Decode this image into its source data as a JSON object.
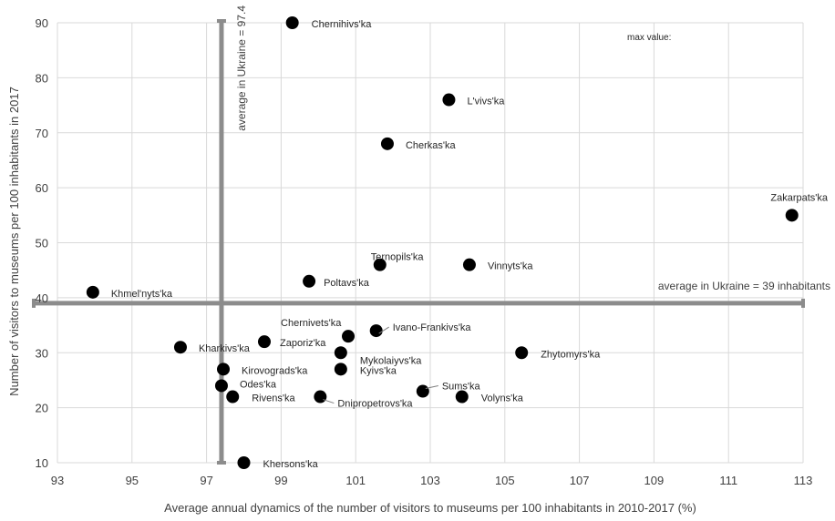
{
  "chart_data": {
    "type": "scatter",
    "title": "",
    "xlabel": "Average annual dynamics of the number of visitors to museums per 100 inhabitants in 2010-2017 (%)",
    "ylabel": "Number of visitors to museums per 100 inhabitants in 2017",
    "xlim": [
      93,
      113
    ],
    "ylim": [
      10,
      90
    ],
    "xticks": [
      93,
      95,
      97,
      99,
      101,
      103,
      105,
      107,
      109,
      111,
      113
    ],
    "yticks": [
      10,
      20,
      30,
      40,
      50,
      60,
      70,
      80,
      90
    ],
    "grid": true,
    "points": [
      {
        "label": "Chernihivs'ka",
        "x": 99.3,
        "y": 90
      },
      {
        "label": "L'vivs'ka",
        "x": 103.5,
        "y": 76
      },
      {
        "label": "Cherkas'ka",
        "x": 101.85,
        "y": 68
      },
      {
        "label": "Zakarpats'ka",
        "x": 112.7,
        "y": 55
      },
      {
        "label": "Ternopils'ka",
        "x": 101.65,
        "y": 46
      },
      {
        "label": "Vinnyts'ka",
        "x": 104.05,
        "y": 46
      },
      {
        "label": "Poltavs'ka",
        "x": 99.75,
        "y": 43
      },
      {
        "label": "Khmel'nyts'ka",
        "x": 93.95,
        "y": 41
      },
      {
        "label": "Ivano-Frankivs'ka",
        "x": 101.55,
        "y": 34
      },
      {
        "label": "Chernivets'ka",
        "x": 100.8,
        "y": 33
      },
      {
        "label": "Zaporiz'ka",
        "x": 98.55,
        "y": 32
      },
      {
        "label": "Kharkivs'ka",
        "x": 96.3,
        "y": 31
      },
      {
        "label": "Mykolaiyvs'ka",
        "x": 100.6,
        "y": 30
      },
      {
        "label": "Zhytomyrs'ka",
        "x": 105.45,
        "y": 30
      },
      {
        "label": "Kirovograds'ka",
        "x": 97.45,
        "y": 27
      },
      {
        "label": "Kyivs'ka",
        "x": 100.6,
        "y": 27
      },
      {
        "label": "Odes'ka",
        "x": 97.4,
        "y": 24
      },
      {
        "label": "Sums'ka",
        "x": 102.8,
        "y": 23
      },
      {
        "label": "Rivens'ka",
        "x": 97.7,
        "y": 22
      },
      {
        "label": "Dnipropetrovs'ka",
        "x": 100.05,
        "y": 22
      },
      {
        "label": "Volyns'ka",
        "x": 103.85,
        "y": 22
      },
      {
        "label": "Khersons'ka",
        "x": 98.0,
        "y": 10
      }
    ],
    "reference_lines": [
      {
        "orientation": "vertical",
        "value": 97.4,
        "label": "average in Ukraine = 97.4"
      },
      {
        "orientation": "horizontal",
        "value": 39,
        "label": "average in Ukraine = 39 inhabitants"
      }
    ],
    "annotation": "max value:",
    "colors": {
      "points": "#000000",
      "reference": "#8c8c8c",
      "grid": "#d9d9d9"
    }
  }
}
